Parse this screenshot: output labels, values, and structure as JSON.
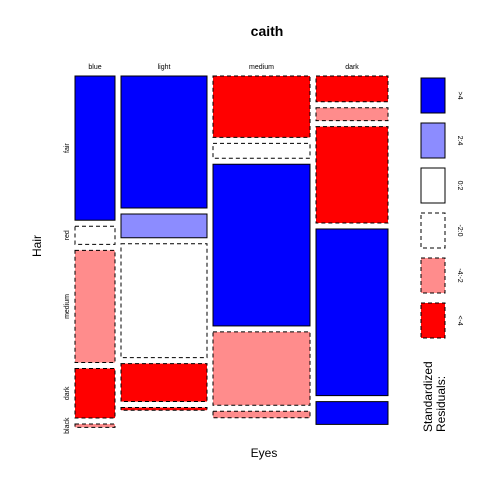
{
  "chart_data": {
    "type": "mosaic",
    "title": "caith",
    "xlabel": "Eyes",
    "ylabel": "Hair",
    "x_categories": [
      "blue",
      "light",
      "medium",
      "dark"
    ],
    "y_categories": [
      "fair",
      "red",
      "medium",
      "dark",
      "black"
    ],
    "column_proportions": [
      0.11,
      0.25,
      0.275,
      0.195
    ],
    "cells": [
      {
        "eyes": "blue",
        "proportions": [
          0.437,
          0.055,
          0.34,
          0.15,
          0.01
        ],
        "shading": [
          ">4",
          "0:-2",
          "-2:-4",
          "<-4",
          "-2:-4"
        ]
      },
      {
        "eyes": "light",
        "proportions": [
          0.4,
          0.072,
          0.345,
          0.115,
          0.008
        ],
        "shading": [
          ">4",
          "2:4",
          "0:-2",
          "<-4",
          "<-4"
        ]
      },
      {
        "eyes": "medium",
        "proportions": [
          0.186,
          0.045,
          0.49,
          0.222,
          0.02
        ],
        "shading": [
          "<-4",
          "0:-2",
          ">4",
          "-2:-4",
          "-2:-4"
        ]
      },
      {
        "eyes": "dark",
        "proportions": [
          0.078,
          0.039,
          0.292,
          0.505,
          0.069
        ],
        "shading": [
          "<-4",
          "-2:-4",
          "<-4",
          ">4",
          ">4"
        ]
      }
    ],
    "legend": {
      "title_lines": [
        "Standardized",
        "Residuals:"
      ],
      "placement": "right",
      "items": [
        {
          "label": ">4",
          "color": "#0000ff",
          "dashed": false
        },
        {
          "label": "2:4",
          "color": "#8c8cff",
          "dashed": false
        },
        {
          "label": "0:2",
          "color": "#ffffff",
          "dashed": false
        },
        {
          "label": "-2:0",
          "color": "#ffffff",
          "dashed": true
        },
        {
          "label": "-4:-2",
          "color": "#ff8c8c",
          "dashed": true
        },
        {
          "label": "<-4",
          "color": "#ff0000",
          "dashed": true
        }
      ]
    },
    "shading_map": {
      ">4": {
        "fill": "#0000ff",
        "dashed": false
      },
      "2:4": {
        "fill": "#8c8cff",
        "dashed": false
      },
      "0:-2": {
        "fill": "#ffffff",
        "dashed": true
      },
      "-2:-4": {
        "fill": "#ff8c8c",
        "dashed": true
      },
      "<-4": {
        "fill": "#ff0000",
        "dashed": true
      }
    }
  }
}
